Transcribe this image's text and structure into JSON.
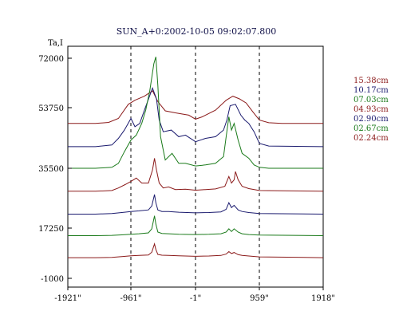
{
  "chart_data": {
    "type": "line",
    "title": "SUN_A+0:2002-10-05 09:02:07.800",
    "ylabel": "Ta,I",
    "xlabel": "",
    "xlim": [
      -1921,
      1918
    ],
    "ylim": [
      -1000,
      75000
    ],
    "x_ticks": [
      {
        "value": -1921,
        "label": "-1921\""
      },
      {
        "value": -961,
        "label": "-961\""
      },
      {
        "value": -1,
        "label": "-1\""
      },
      {
        "value": 959,
        "label": "959\""
      },
      {
        "value": 1918,
        "label": "1918\""
      }
    ],
    "y_ticks": [
      {
        "value": 72000,
        "label": "72000"
      },
      {
        "value": 53750,
        "label": "53750"
      },
      {
        "value": 35500,
        "label": "35500"
      },
      {
        "value": 17250,
        "label": "17250"
      },
      {
        "value": -1000,
        "label": "-1000"
      }
    ],
    "dashed_verticals": [
      -961,
      -1,
      959
    ],
    "grid": false,
    "legend_position": "right",
    "series": [
      {
        "name": "15.38cm",
        "color": "#8b1a1a",
        "baseline": 49000,
        "points": [
          [
            -1921,
            49000
          ],
          [
            -1500,
            49000
          ],
          [
            -1300,
            49300
          ],
          [
            -1150,
            50500
          ],
          [
            -1000,
            55000
          ],
          [
            -900,
            56500
          ],
          [
            -760,
            58000
          ],
          [
            -640,
            60000
          ],
          [
            -560,
            56000
          ],
          [
            -450,
            52800
          ],
          [
            -300,
            52200
          ],
          [
            -100,
            51500
          ],
          [
            -1,
            50300
          ],
          [
            100,
            51000
          ],
          [
            300,
            53000
          ],
          [
            460,
            56500
          ],
          [
            560,
            58000
          ],
          [
            660,
            57000
          ],
          [
            760,
            55500
          ],
          [
            860,
            52500
          ],
          [
            960,
            50000
          ],
          [
            1100,
            49200
          ],
          [
            1300,
            49000
          ],
          [
            1918,
            49000
          ]
        ]
      },
      {
        "name": "10.17cm",
        "color": "#1a1a6e",
        "baseline": 42000,
        "points": [
          [
            -1921,
            42000
          ],
          [
            -1500,
            42000
          ],
          [
            -1250,
            42500
          ],
          [
            -1150,
            44500
          ],
          [
            -1060,
            47000
          ],
          [
            -960,
            50500
          ],
          [
            -900,
            48000
          ],
          [
            -830,
            49000
          ],
          [
            -760,
            53000
          ],
          [
            -640,
            61000
          ],
          [
            -580,
            57000
          ],
          [
            -540,
            50000
          ],
          [
            -480,
            46500
          ],
          [
            -360,
            47000
          ],
          [
            -250,
            45000
          ],
          [
            -150,
            45500
          ],
          [
            -1,
            43500
          ],
          [
            150,
            44500
          ],
          [
            300,
            45000
          ],
          [
            420,
            47000
          ],
          [
            470,
            50000
          ],
          [
            520,
            54500
          ],
          [
            600,
            55000
          ],
          [
            680,
            51500
          ],
          [
            740,
            50000
          ],
          [
            800,
            49000
          ],
          [
            880,
            46500
          ],
          [
            960,
            43000
          ],
          [
            1100,
            42200
          ],
          [
            1918,
            42000
          ]
        ]
      },
      {
        "name": "07.03cm",
        "color": "#1a7a1a",
        "baseline": 35500,
        "points": [
          [
            -1921,
            35500
          ],
          [
            -1500,
            35500
          ],
          [
            -1250,
            35800
          ],
          [
            -1150,
            37000
          ],
          [
            -1060,
            40500
          ],
          [
            -960,
            44000
          ],
          [
            -880,
            45500
          ],
          [
            -800,
            49000
          ],
          [
            -740,
            53000
          ],
          [
            -680,
            60000
          ],
          [
            -620,
            70000
          ],
          [
            -590,
            72500
          ],
          [
            -560,
            62000
          ],
          [
            -520,
            45000
          ],
          [
            -450,
            38000
          ],
          [
            -350,
            40000
          ],
          [
            -250,
            37000
          ],
          [
            -150,
            37000
          ],
          [
            -1,
            36200
          ],
          [
            150,
            36500
          ],
          [
            300,
            37000
          ],
          [
            420,
            39000
          ],
          [
            460,
            45000
          ],
          [
            500,
            51000
          ],
          [
            540,
            47000
          ],
          [
            580,
            49000
          ],
          [
            640,
            44000
          ],
          [
            700,
            40000
          ],
          [
            800,
            38500
          ],
          [
            880,
            36500
          ],
          [
            960,
            35800
          ],
          [
            1100,
            35500
          ],
          [
            1918,
            35500
          ]
        ]
      },
      {
        "name": "04.93cm",
        "color": "#8b1a1a",
        "baseline": 28500,
        "points": [
          [
            -1921,
            28500
          ],
          [
            -1500,
            28500
          ],
          [
            -1250,
            28700
          ],
          [
            -1150,
            29500
          ],
          [
            -1050,
            30500
          ],
          [
            -960,
            31500
          ],
          [
            -880,
            32500
          ],
          [
            -800,
            31000
          ],
          [
            -700,
            31000
          ],
          [
            -640,
            35000
          ],
          [
            -610,
            38500
          ],
          [
            -580,
            35000
          ],
          [
            -540,
            31000
          ],
          [
            -480,
            29500
          ],
          [
            -400,
            29800
          ],
          [
            -300,
            29000
          ],
          [
            -150,
            29100
          ],
          [
            -1,
            28800
          ],
          [
            150,
            29000
          ],
          [
            300,
            29200
          ],
          [
            440,
            30000
          ],
          [
            500,
            33000
          ],
          [
            540,
            31000
          ],
          [
            580,
            32000
          ],
          [
            600,
            34500
          ],
          [
            640,
            32000
          ],
          [
            700,
            30000
          ],
          [
            800,
            29300
          ],
          [
            960,
            28700
          ],
          [
            1918,
            28500
          ]
        ]
      },
      {
        "name": "02.90cm",
        "color": "#1a1a6e",
        "baseline": 21500,
        "points": [
          [
            -1921,
            21500
          ],
          [
            -1500,
            21500
          ],
          [
            -1250,
            21700
          ],
          [
            -1100,
            22000
          ],
          [
            -960,
            22300
          ],
          [
            -840,
            22500
          ],
          [
            -700,
            22800
          ],
          [
            -650,
            24000
          ],
          [
            -610,
            27500
          ],
          [
            -590,
            25000
          ],
          [
            -560,
            22800
          ],
          [
            -500,
            22300
          ],
          [
            -400,
            22300
          ],
          [
            -250,
            22100
          ],
          [
            -1,
            21900
          ],
          [
            200,
            22000
          ],
          [
            380,
            22200
          ],
          [
            460,
            23000
          ],
          [
            500,
            25000
          ],
          [
            540,
            23500
          ],
          [
            580,
            24200
          ],
          [
            640,
            22800
          ],
          [
            700,
            22300
          ],
          [
            800,
            22000
          ],
          [
            960,
            21700
          ],
          [
            1918,
            21500
          ]
        ]
      },
      {
        "name": "02.67cm",
        "color": "#1a7a1a",
        "baseline": 14500,
        "points": [
          [
            -1921,
            14500
          ],
          [
            -1500,
            14500
          ],
          [
            -1250,
            14600
          ],
          [
            -1100,
            14800
          ],
          [
            -960,
            15000
          ],
          [
            -840,
            15200
          ],
          [
            -700,
            15500
          ],
          [
            -650,
            17000
          ],
          [
            -610,
            21000
          ],
          [
            -590,
            18500
          ],
          [
            -560,
            15800
          ],
          [
            -500,
            15300
          ],
          [
            -400,
            15200
          ],
          [
            -250,
            15000
          ],
          [
            -1,
            14900
          ],
          [
            200,
            15000
          ],
          [
            380,
            15200
          ],
          [
            460,
            15800
          ],
          [
            500,
            17000
          ],
          [
            540,
            16000
          ],
          [
            580,
            17000
          ],
          [
            640,
            15800
          ],
          [
            700,
            15200
          ],
          [
            800,
            14900
          ],
          [
            960,
            14700
          ],
          [
            1918,
            14500
          ]
        ]
      },
      {
        "name": "02.24cm",
        "color": "#8b1a1a",
        "baseline": 6500,
        "points": [
          [
            -1921,
            6500
          ],
          [
            -1500,
            6500
          ],
          [
            -1250,
            6600
          ],
          [
            -1100,
            6900
          ],
          [
            -960,
            7200
          ],
          [
            -840,
            7300
          ],
          [
            -700,
            7500
          ],
          [
            -650,
            8500
          ],
          [
            -610,
            11500
          ],
          [
            -590,
            9500
          ],
          [
            -560,
            7700
          ],
          [
            -500,
            7400
          ],
          [
            -400,
            7300
          ],
          [
            -250,
            7200
          ],
          [
            -1,
            7000
          ],
          [
            200,
            7100
          ],
          [
            380,
            7300
          ],
          [
            460,
            7800
          ],
          [
            500,
            8700
          ],
          [
            540,
            8000
          ],
          [
            580,
            8400
          ],
          [
            640,
            7600
          ],
          [
            700,
            7300
          ],
          [
            800,
            7100
          ],
          [
            960,
            6800
          ],
          [
            1918,
            6500
          ]
        ]
      }
    ]
  },
  "colors": {
    "axis": "#000000",
    "title": "#101048",
    "background": "#ffffff"
  }
}
